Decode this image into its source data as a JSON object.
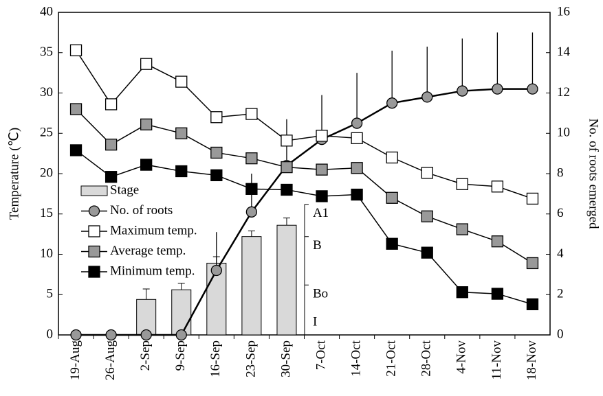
{
  "chart_data": {
    "type": "combo",
    "categories": [
      "19-Aug",
      "26-Aug",
      "2-Sep",
      "9-Sep",
      "16-Sep",
      "23-Sep",
      "30-Sep",
      "7-Oct",
      "14-Oct",
      "21-Oct",
      "28-Oct",
      "4-Nov",
      "11-Nov",
      "18-Nov"
    ],
    "ylabel": "Temperature (℃)",
    "y2label": "No. of roots emerged",
    "ylim": [
      0,
      40
    ],
    "yticks": [
      0,
      5,
      10,
      15,
      20,
      25,
      30,
      35,
      40
    ],
    "y2lim": [
      0,
      16
    ],
    "y2ticks": [
      0,
      2,
      4,
      6,
      8,
      10,
      12,
      14,
      16
    ],
    "stage_ticks": [
      {
        "value": 15,
        "label": "A1"
      },
      {
        "value": 11,
        "label": "B"
      },
      {
        "value": 5,
        "label": "Bo"
      },
      {
        "value": 1.5,
        "label": "I"
      }
    ],
    "legend": "left",
    "series": [
      {
        "name": "Stage",
        "type": "bar",
        "color": "#d9d9d9",
        "values": [
          null,
          null,
          4.4,
          5.6,
          8.9,
          12.2,
          13.6,
          null,
          null,
          null,
          null,
          null,
          null,
          null
        ],
        "errors": [
          null,
          null,
          1.3,
          0.8,
          0.8,
          0.7,
          0.9,
          null,
          null,
          null,
          null,
          null,
          null,
          null
        ]
      },
      {
        "name": "No. of roots",
        "type": "line",
        "axis": "y2",
        "marker": "circle",
        "color": "#999999",
        "values": [
          0,
          0,
          0,
          0,
          3.2,
          6.1,
          8.4,
          9.7,
          10.5,
          11.5,
          11.8,
          12.1,
          12.2,
          12.2
        ],
        "errors": [
          0,
          0,
          0,
          0,
          1.9,
          1.9,
          2.3,
          2.2,
          2.5,
          2.6,
          2.5,
          2.6,
          2.8,
          2.8
        ]
      },
      {
        "name": "Maximum temp.",
        "type": "line",
        "marker": "square",
        "color": "#ffffff",
        "values": [
          35.3,
          28.6,
          33.6,
          31.4,
          27.0,
          27.4,
          24.1,
          24.7,
          24.4,
          22.0,
          20.1,
          18.7,
          18.4,
          16.9
        ]
      },
      {
        "name": "Average temp.",
        "type": "line",
        "marker": "square",
        "color": "#999999",
        "values": [
          28.0,
          23.6,
          26.1,
          25.0,
          22.6,
          21.9,
          20.8,
          20.5,
          20.7,
          17.0,
          14.7,
          13.1,
          11.6,
          8.9
        ]
      },
      {
        "name": "Minimum temp.",
        "type": "line",
        "marker": "square",
        "color": "#000000",
        "values": [
          22.9,
          19.6,
          21.1,
          20.3,
          19.8,
          18.1,
          18.0,
          17.2,
          17.4,
          11.3,
          10.2,
          5.3,
          5.1,
          3.8
        ]
      }
    ]
  }
}
